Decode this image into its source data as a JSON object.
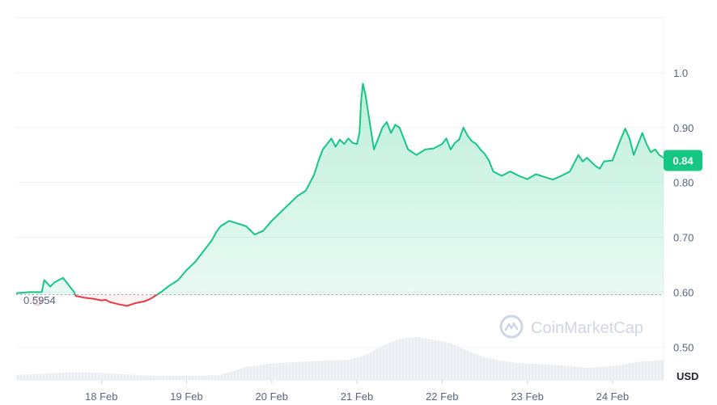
{
  "watermark": {
    "text": "CoinMarketCap",
    "icon": "coinmarketcap-logo-icon"
  },
  "colors": {
    "up": "#16c784",
    "down": "#ea3943",
    "grid": "#eff2f5",
    "volume": "#eff2f5",
    "axis_text": "#58667e"
  },
  "chart_data": {
    "type": "area",
    "title": "",
    "xlabel": "",
    "ylabel": "USD",
    "y_unit": "USD",
    "ylim": [
      0.44,
      1.1
    ],
    "yticks": [
      "0.50",
      "0.60",
      "0.70",
      "0.80",
      "0.90",
      "1.0"
    ],
    "xticks": [
      "18 Feb",
      "19 Feb",
      "20 Feb",
      "21 Feb",
      "22 Feb",
      "23 Feb",
      "24 Feb"
    ],
    "reference_price": 0.5954,
    "reference_label": "0.5954",
    "current_price": 0.84,
    "current_label": "0.84",
    "grid": true,
    "x_days": [
      17.0,
      17.15,
      17.3,
      17.33,
      17.4,
      17.45,
      17.5,
      17.55,
      17.62,
      17.68,
      17.7,
      17.8,
      17.9,
      18.0,
      18.05,
      18.1,
      18.2,
      18.3,
      18.4,
      18.5,
      18.55,
      18.6,
      18.7,
      18.8,
      18.9,
      19.0,
      19.1,
      19.2,
      19.3,
      19.35,
      19.4,
      19.5,
      19.6,
      19.7,
      19.8,
      19.9,
      20.0,
      20.1,
      20.2,
      20.3,
      20.4,
      20.45,
      20.5,
      20.55,
      20.6,
      20.65,
      20.7,
      20.75,
      20.8,
      20.85,
      20.9,
      20.95,
      21.0,
      21.03,
      21.05,
      21.07,
      21.1,
      21.15,
      21.2,
      21.25,
      21.3,
      21.35,
      21.4,
      21.45,
      21.5,
      21.55,
      21.6,
      21.65,
      21.7,
      21.8,
      21.9,
      22.0,
      22.05,
      22.1,
      22.15,
      22.2,
      22.25,
      22.3,
      22.35,
      22.4,
      22.45,
      22.5,
      22.55,
      22.6,
      22.7,
      22.8,
      22.9,
      23.0,
      23.1,
      23.2,
      23.3,
      23.4,
      23.5,
      23.6,
      23.65,
      23.7,
      23.8,
      23.85,
      23.9,
      24.0,
      24.05,
      24.1,
      24.15,
      24.2,
      24.25,
      24.3,
      24.35,
      24.4,
      24.45,
      24.5,
      24.55,
      24.6
    ],
    "series": [
      {
        "values": [
          0.598,
          0.6,
          0.6,
          0.622,
          0.61,
          0.618,
          0.622,
          0.626,
          0.612,
          0.6,
          0.593,
          0.59,
          0.588,
          0.585,
          0.586,
          0.582,
          0.578,
          0.575,
          0.58,
          0.583,
          0.586,
          0.59,
          0.6,
          0.612,
          0.622,
          0.64,
          0.655,
          0.675,
          0.695,
          0.71,
          0.72,
          0.73,
          0.725,
          0.72,
          0.705,
          0.712,
          0.73,
          0.745,
          0.76,
          0.775,
          0.785,
          0.8,
          0.815,
          0.84,
          0.86,
          0.87,
          0.88,
          0.865,
          0.878,
          0.87,
          0.88,
          0.872,
          0.87,
          0.89,
          0.95,
          0.98,
          0.96,
          0.91,
          0.86,
          0.88,
          0.9,
          0.91,
          0.89,
          0.905,
          0.9,
          0.88,
          0.86,
          0.855,
          0.85,
          0.86,
          0.862,
          0.87,
          0.88,
          0.86,
          0.872,
          0.878,
          0.9,
          0.885,
          0.875,
          0.87,
          0.86,
          0.852,
          0.84,
          0.82,
          0.812,
          0.82,
          0.812,
          0.806,
          0.815,
          0.81,
          0.805,
          0.812,
          0.82,
          0.85,
          0.838,
          0.845,
          0.83,
          0.825,
          0.838,
          0.84,
          0.86,
          0.88,
          0.898,
          0.88,
          0.85,
          0.87,
          0.89,
          0.87,
          0.855,
          0.86,
          0.85,
          0.845
        ]
      }
    ],
    "volume": {
      "x_days": [
        17.0,
        17.3,
        17.6,
        17.9,
        18.2,
        18.5,
        18.8,
        19.1,
        19.4,
        19.7,
        20.0,
        20.3,
        20.6,
        20.9,
        21.1,
        21.3,
        21.5,
        21.7,
        21.9,
        22.1,
        22.3,
        22.5,
        22.7,
        22.9,
        23.1,
        23.3,
        23.5,
        23.7,
        23.9,
        24.1,
        24.3,
        24.6
      ],
      "values": [
        0.1,
        0.12,
        0.15,
        0.15,
        0.12,
        0.09,
        0.08,
        0.08,
        0.1,
        0.26,
        0.33,
        0.36,
        0.38,
        0.4,
        0.5,
        0.68,
        0.82,
        0.86,
        0.8,
        0.74,
        0.58,
        0.45,
        0.38,
        0.34,
        0.32,
        0.3,
        0.28,
        0.24,
        0.26,
        0.3,
        0.36,
        0.4
      ]
    }
  }
}
